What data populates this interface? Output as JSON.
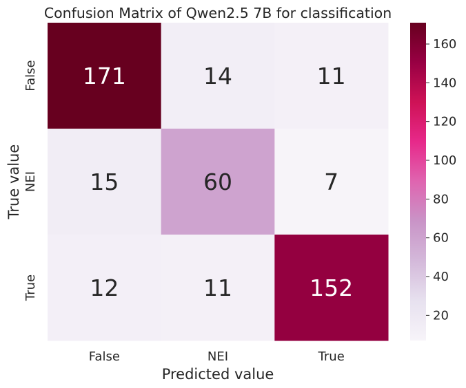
{
  "chart_data": {
    "type": "heatmap",
    "title": "Confusion Matrix of Qwen2.5 7B for classification",
    "xlabel": "Predicted value",
    "ylabel": "True value",
    "x_categories": [
      "False",
      "NEI",
      "True"
    ],
    "y_categories": [
      "False",
      "NEI",
      "True"
    ],
    "values": [
      [
        171,
        14,
        11
      ],
      [
        15,
        60,
        7
      ],
      [
        12,
        11,
        152
      ]
    ],
    "colorbar": {
      "ticks": [
        "20",
        "40",
        "60",
        "80",
        "100",
        "120",
        "140",
        "160"
      ],
      "range": [
        7,
        171
      ],
      "colormap": "PuRd"
    },
    "colors": {
      "low": "#f4f1f8",
      "mid": "#d1a6d0",
      "accent": "#e7298a",
      "high": "#67001f",
      "text_dark": "#262626",
      "text_light": "#ffffff"
    }
  }
}
